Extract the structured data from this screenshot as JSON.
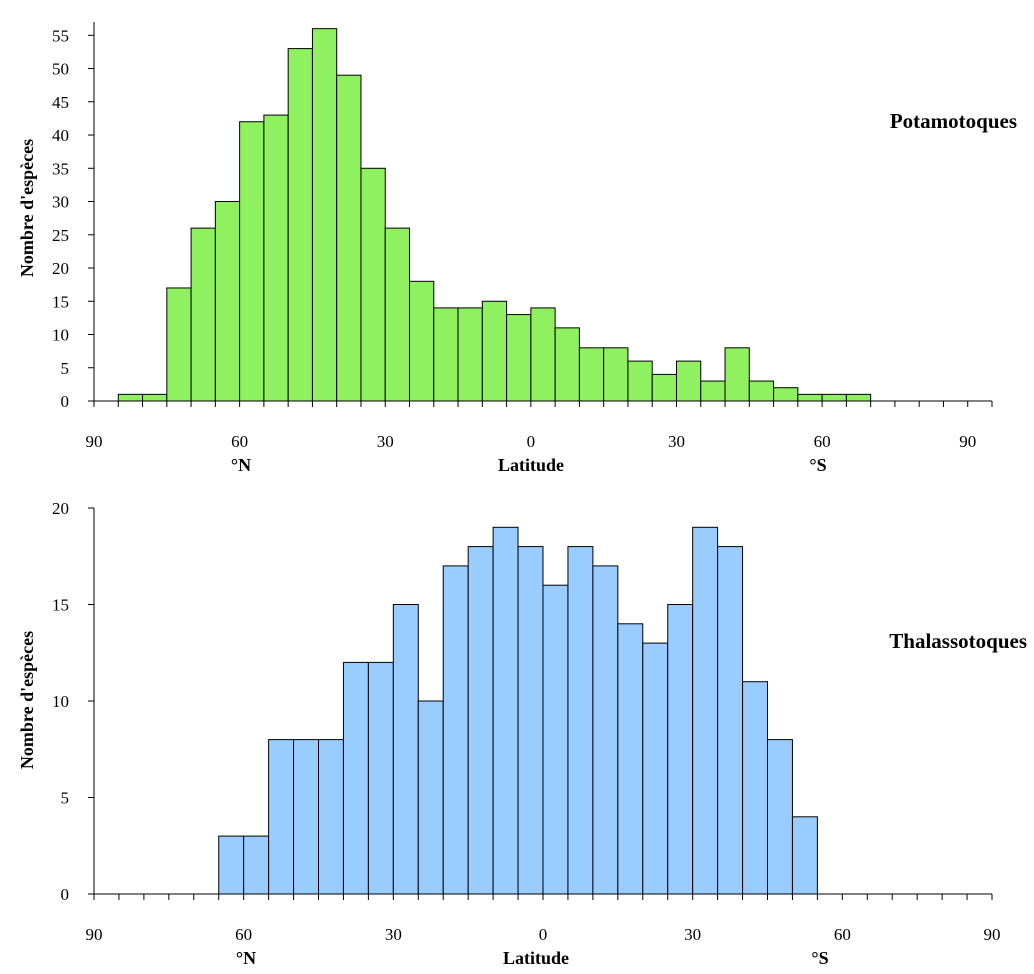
{
  "colors": {
    "potamotoques": "#8ff060",
    "thalassotoques": "#99ccff",
    "stroke": "#000000"
  },
  "chart_data": [
    {
      "type": "bar",
      "panel_label": "Potamotoques",
      "ylabel": "Nombre d'espèces",
      "xlabel": "Latitude",
      "hemisphere_labels": {
        "north": "°N",
        "south": "°S"
      },
      "yticks": [
        0,
        5,
        10,
        15,
        20,
        25,
        30,
        35,
        40,
        45,
        50,
        55
      ],
      "ylim": [
        0,
        57
      ],
      "xticks": [
        -90,
        -60,
        -30,
        0,
        30,
        60,
        90
      ],
      "xtick_labels": [
        "90",
        "60",
        "30",
        "0",
        "30",
        "60",
        "90"
      ],
      "minor_tick_step": 5,
      "xlim": [
        -90,
        95
      ],
      "bin_width": 5,
      "bins_start": [
        -85,
        -80,
        -75,
        -70,
        -65,
        -60,
        -55,
        -50,
        -45,
        -40,
        -35,
        -30,
        -25,
        -20,
        -15,
        -10,
        -5,
        0,
        5,
        10,
        15,
        20,
        25,
        30,
        35,
        40,
        45,
        50,
        55,
        60,
        65
      ],
      "values": [
        1,
        1,
        17,
        26,
        30,
        42,
        43,
        53,
        56,
        49,
        35,
        26,
        18,
        14,
        14,
        15,
        13,
        14,
        11,
        8,
        8,
        6,
        4,
        6,
        3,
        8,
        3,
        2,
        1,
        1,
        1
      ]
    },
    {
      "type": "bar",
      "panel_label": "Thalassotoques",
      "ylabel": "Nombre d'espèces",
      "xlabel": "Latitude",
      "hemisphere_labels": {
        "north": "°N",
        "south": "°S"
      },
      "yticks": [
        0,
        5,
        10,
        15,
        20
      ],
      "ylim": [
        0,
        20
      ],
      "xticks": [
        -90,
        -60,
        -30,
        0,
        30,
        60,
        90
      ],
      "xtick_labels": [
        "90",
        "60",
        "30",
        "0",
        "30",
        "60",
        "90"
      ],
      "minor_tick_step": 5,
      "xlim": [
        -90,
        90
      ],
      "bin_width": 5,
      "bins_start": [
        -65,
        -60,
        -55,
        -50,
        -45,
        -40,
        -35,
        -30,
        -25,
        -20,
        -15,
        -10,
        -5,
        0,
        5,
        10,
        15,
        20,
        25,
        30,
        35,
        40,
        45,
        50
      ],
      "values": [
        3,
        3,
        8,
        8,
        8,
        12,
        12,
        15,
        10,
        17,
        18,
        19,
        18,
        16,
        18,
        17,
        14,
        13,
        15,
        19,
        18,
        11,
        8,
        4
      ]
    }
  ]
}
